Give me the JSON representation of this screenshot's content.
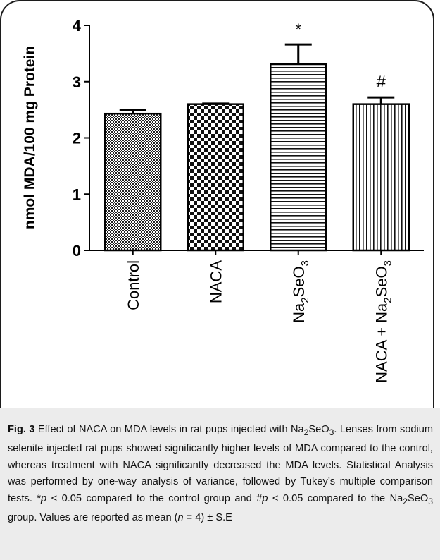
{
  "chart_data": {
    "type": "bar",
    "ylabel": "nmol MDA/100 mg Protein",
    "ylim": [
      0,
      4
    ],
    "yticks": [
      "0",
      "1",
      "2",
      "3",
      "4"
    ],
    "categories": [
      {
        "base": "Control"
      },
      {
        "base": "NACA"
      },
      {
        "base": "Na",
        "parts": [
          [
            "Na",
            ""
          ],
          [
            "2",
            "sub"
          ],
          [
            "SeO",
            ""
          ],
          [
            "3",
            "sub"
          ]
        ]
      },
      {
        "base": "NACA + Na",
        "parts": [
          [
            "NACA + Na",
            ""
          ],
          [
            "2",
            "sub"
          ],
          [
            "SeO",
            ""
          ],
          [
            "3",
            "sub"
          ]
        ]
      }
    ],
    "values": [
      2.43,
      2.6,
      3.31,
      2.6
    ],
    "errors": [
      0.06,
      0.01,
      0.35,
      0.12
    ],
    "annotations": [
      "",
      "",
      "*",
      "#"
    ],
    "patterns": [
      "fine-check",
      "checker",
      "horizontal-lines",
      "vertical-lines"
    ]
  },
  "caption": {
    "label": "Fig. 3",
    "part1": " Effect of NACA on MDA levels in rat pups injected with Na",
    "sub1": "2",
    "part2": "SeO",
    "sub2": "3",
    "part3": ". Lenses from sodium selenite injected rat pups showed significantly higher levels of MDA compared to the control, whereas treatment with NACA significantly decreased the MDA levels. Statistical Analysis was performed by one-way analysis of variance, followed by Tukey’s multiple comparison tests. *",
    "p1": "p",
    "part4": " < 0.05 compared to the control group and #",
    "p2": "p",
    "part5": " < 0.05 compared to the Na",
    "sub3": "2",
    "part6": "SeO",
    "sub4": "3",
    "part7": " group. Values are reported as mean (",
    "n": "n",
    "part8": " = 4) ± S.E"
  }
}
